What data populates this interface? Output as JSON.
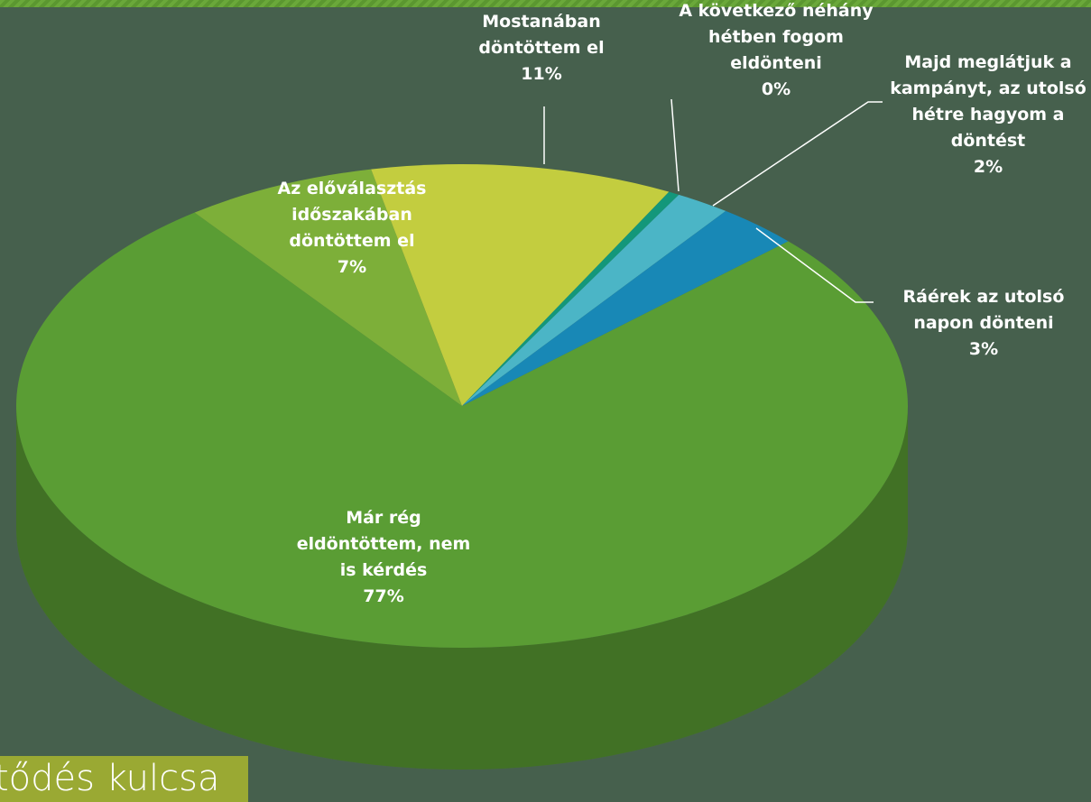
{
  "chart_data": {
    "type": "pie",
    "title": "tődés kulcsa",
    "categories": [
      "Már rég eldöntöttem, nem is kérdés",
      "Az előválasztás időszakában döntöttem el",
      "Mostanában döntöttem el",
      "A következő néhány hétben fogom eldönteni",
      "Majd meglátjuk a kampányt, az utolsó hétre hagyom a döntést",
      "Ráérek az utolsó napon dönteni"
    ],
    "values": [
      77,
      7,
      11,
      0.4,
      2,
      3
    ],
    "value_labels": [
      "77%",
      "7%",
      "11%",
      "0%",
      "2%",
      "3%"
    ],
    "colors": [
      "#5a9d34",
      "#7daf39",
      "#c3cd3f",
      "#13977a",
      "#4bb5c6",
      "#1888b6"
    ]
  }
}
